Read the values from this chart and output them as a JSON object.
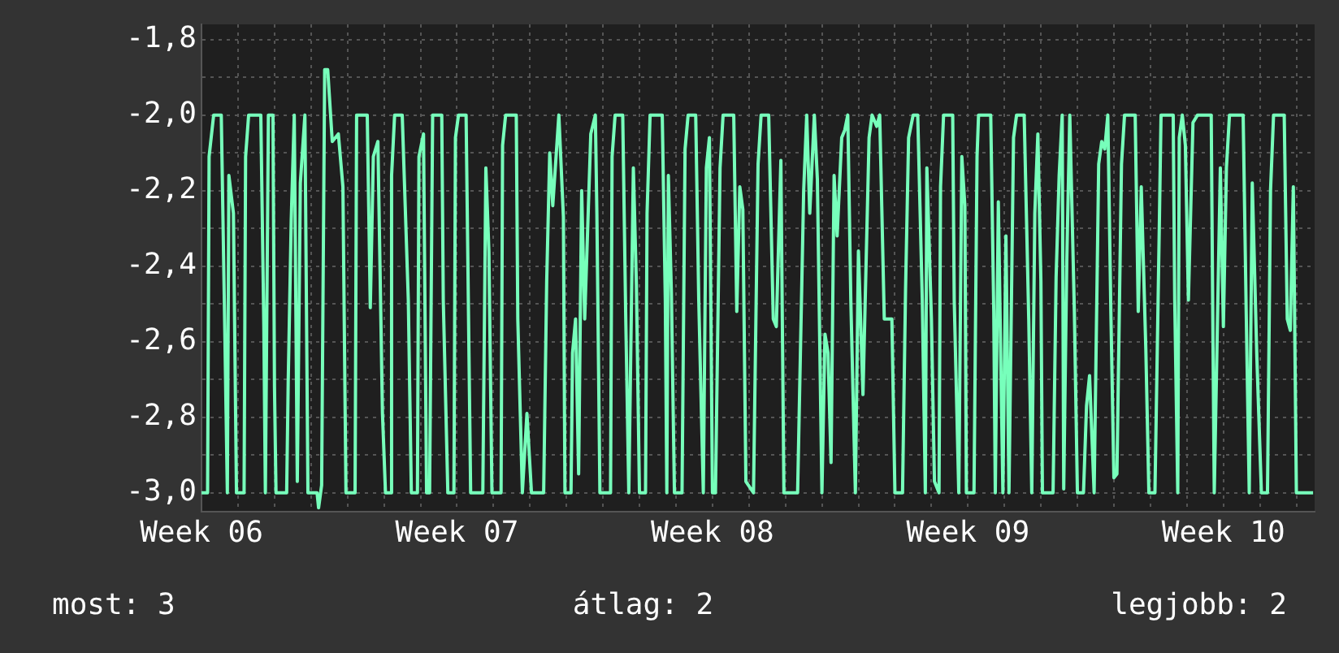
{
  "chart_data": {
    "type": "line",
    "x": [
      "--02-06T00:00",
      "--02-06T04:00",
      "--02-06T05:00",
      "--02-06T08:00",
      "--02-06T13:00",
      "--02-06T15:00",
      "--02-06T17:00",
      "--02-06T18:00",
      "--02-06T21:00",
      "--02-06T23:00",
      "--02-07T04:00",
      "--02-07T05:00",
      "--02-07T07:00",
      "--02-07T15:00",
      "--02-07T17:00",
      "--02-07T18:00",
      "--02-07T20:00",
      "--02-07T23:00",
      "--02-08T00:00",
      "--02-08T01:00",
      "--02-08T08:00",
      "--02-08T09:00",
      "--02-08T11:00",
      "--02-08T13:00",
      "--02-08T15:00",
      "--02-08T17:00",
      "--02-08T20:00",
      "--02-08T22:00",
      "--02-09T04:00",
      "--02-09T05:00",
      "--02-09T07:00",
      "--02-09T09:00",
      "--02-09T11:00",
      "--02-09T14:00",
      "--02-09T18:00",
      "--02-09T21:00",
      "--02-09T23:00",
      "--02-10T05:00",
      "--02-10T06:00",
      "--02-10T13:00",
      "--02-10T15:00",
      "--02-10T17:00",
      "--02-10T20:00",
      "--02-10T23:00",
      "--02-11T01:00",
      "--02-11T04:00",
      "--02-11T05:00",
      "--02-11T07:00",
      "--02-11T12:00",
      "--02-11T16:00",
      "--02-11T18:00",
      "--02-11T22:00",
      "--02-11T23:00",
      "--02-12T02:00",
      "--02-12T04:00",
      "--02-12T06:00",
      "--02-12T08:00",
      "--02-12T14:00",
      "--02-12T15:00",
      "--02-12T18:00",
      "--02-12T22:00",
      "--02-12T23:00",
      "--02-13T01:00",
      "--02-13T06:00",
      "--02-13T09:00",
      "--02-13T17:00",
      "--02-13T19:00",
      "--02-13T21:00",
      "--02-13T23:00",
      "--02-14T05:00",
      "--02-14T06:00",
      "--02-14T08:00",
      "--02-14T15:00",
      "--02-14T16:00",
      "--02-14T19:00",
      "--02-14T22:00",
      "--02-15T01:00",
      "--02-15T09:00",
      "--02-15T11:00",
      "--02-15T13:00",
      "--02-15T15:00",
      "--02-15T19:00",
      "--02-15T22:00",
      "--02-15T23:00",
      "--02-16T03:00",
      "--02-16T04:00",
      "--02-16T06:00",
      "--02-16T08:00",
      "--02-16T10:00",
      "--02-16T12:00",
      "--02-16T16:00",
      "--02-16T19:00",
      "--02-16T20:00",
      "--02-16T22:00",
      "--02-17T05:00",
      "--02-17T06:00",
      "--02-17T08:00",
      "--02-17T13:00",
      "--02-17T15:00",
      "--02-17T17:00",
      "--02-17T20:00",
      "--02-17T22:00",
      "--02-18T00:00",
      "--02-18T04:00",
      "--02-18T05:00",
      "--02-18T07:00",
      "--02-18T15:00",
      "--02-18T17:00",
      "--02-18T18:00",
      "--02-18T19:00",
      "--02-18T21:00",
      "--02-18T23:00",
      "--02-19T04:00",
      "--02-19T06:00",
      "--02-19T08:00",
      "--02-19T13:00",
      "--02-19T15:00",
      "--02-19T18:00",
      "--02-19T20:00",
      "--02-19T22:00",
      "--02-20T00:00",
      "--02-20T02:00",
      "--02-20T05:00",
      "--02-20T07:00",
      "--02-20T14:00",
      "--02-20T16:00",
      "--02-20T18:00",
      "--02-20T20:00",
      "--02-20T22:00",
      "--02-21T03:00",
      "--02-21T06:00",
      "--02-21T08:00",
      "--02-21T13:00",
      "--02-21T16:00",
      "--02-21T18:00",
      "--02-21T21:00",
      "--02-21T23:00",
      "--02-22T08:00",
      "--02-22T10:00",
      "--02-22T12:00",
      "--02-22T14:00",
      "--02-22T16:00",
      "--02-22T19:00",
      "--02-22T21:00",
      "--02-23T00:00",
      "--02-23T02:00",
      "--02-23T04:00",
      "--02-23T06:00",
      "--02-23T08:00",
      "--02-23T10:00",
      "--02-23T13:00",
      "--02-23T15:00",
      "--02-23T17:00",
      "--02-23T19:00",
      "--02-23T22:00",
      "--02-24T00:00",
      "--02-24T03:00",
      "--02-24T07:00",
      "--02-24T09:00",
      "--02-24T12:00",
      "--02-24T14:00",
      "--02-24T17:00",
      "--02-24T22:00",
      "--02-25T00:00",
      "--02-25T05:00",
      "--02-25T07:00",
      "--02-25T09:00",
      "--02-25T12:00",
      "--02-25T15:00",
      "--02-25T18:00",
      "--02-25T20:00",
      "--02-25T21:00",
      "--02-26T00:00",
      "--02-26T02:00",
      "--02-26T05:00",
      "--02-26T06:00",
      "--02-26T08:00",
      "--02-26T14:00",
      "--02-26T15:00",
      "--02-26T18:00",
      "--02-26T20:00",
      "--02-26T22:00",
      "--02-26T23:00",
      "--02-27T04:00",
      "--02-27T06:00",
      "--02-27T07:00",
      "--02-27T15:00",
      "--02-27T17:00",
      "--02-27T18:00",
      "--02-27T20:00",
      "--02-27T23:00",
      "--02-28T01:00",
      "--02-28T03:00",
      "--02-28T06:00",
      "--02-28T08:00",
      "--02-28T13:00",
      "--02-28T16:00",
      "--02-28T18:00",
      "--02-28T20:00",
      "--02-28T22:00",
      "--03-01T00:00",
      "--03-01T01:00",
      "--03-01T08:00",
      "--03-01T10:00",
      "--03-01T12:00",
      "--03-01T14:00",
      "--03-01T15:00",
      "--03-01T17:00",
      "--03-01T19:00",
      "--03-01T22:00",
      "--03-02T00:00",
      "--03-02T04:00",
      "--03-02T06:00",
      "--03-02T08:00",
      "--03-02T11:00",
      "--03-02T14:00",
      "--03-02T16:00",
      "--03-02T18:00",
      "--03-02T20:00",
      "--03-02T22:00",
      "--03-03T00:00",
      "--03-03T02:00",
      "--03-03T05:00",
      "--03-03T07:00",
      "--03-03T14:00",
      "--03-03T16:00",
      "--03-03T18:00",
      "--03-03T21:00",
      "--03-03T23:00",
      "--03-04T03:00",
      "--03-04T06:00",
      "--03-04T07:00",
      "--03-04T15:00",
      "--03-04T16:00",
      "--03-04T18:00",
      "--03-04T19:00",
      "--03-04T21:00",
      "--03-04T23:00",
      "--03-05T01:00",
      "--03-05T04:00",
      "--03-05T07:00",
      "--03-05T16:00",
      "--03-05T17:00",
      "--03-05T18:00",
      "--03-05T22:00",
      "--03-06T00:00",
      "--03-06T02:00",
      "--03-06T04:00",
      "--03-06T13:00",
      "--03-06T15:00",
      "--03-06T17:00",
      "--03-06T19:00",
      "--03-06T22:00",
      "--03-07T01:00",
      "--03-07T05:00",
      "--03-07T07:00",
      "--03-07T09:00",
      "--03-07T16:00",
      "--03-07T18:00",
      "--03-07T20:00",
      "--03-07T22:00",
      "--03-08T00:00",
      "--03-08T11:00"
    ],
    "series": [
      {
        "color": "#77ffbb",
        "values": [
          -3.0,
          -3.0,
          -2.11,
          -2.0,
          -2.0,
          -2.49,
          -3.0,
          -2.16,
          -2.26,
          -3.0,
          -3.0,
          -2.11,
          -2.0,
          -2.0,
          -2.56,
          -3.0,
          -2.0,
          -2.0,
          -2.72,
          -3.0,
          -3.0,
          -2.71,
          -2.28,
          -2.0,
          -2.97,
          -2.18,
          -2.0,
          -3.0,
          -3.0,
          -3.04,
          -2.98,
          -1.88,
          -1.88,
          -2.07,
          -2.05,
          -2.19,
          -3.0,
          -3.0,
          -2.0,
          -2.0,
          -2.51,
          -2.11,
          -2.07,
          -2.79,
          -3.0,
          -3.0,
          -2.16,
          -2.0,
          -2.0,
          -2.49,
          -3.0,
          -3.0,
          -2.11,
          -2.05,
          -3.0,
          -3.0,
          -2.0,
          -2.0,
          -2.49,
          -3.0,
          -3.0,
          -2.06,
          -2.0,
          -2.0,
          -3.0,
          -3.0,
          -2.14,
          -2.36,
          -3.0,
          -3.0,
          -2.08,
          -2.0,
          -2.0,
          -2.54,
          -3.0,
          -2.79,
          -3.0,
          -3.0,
          -2.44,
          -2.1,
          -2.24,
          -2.0,
          -2.27,
          -3.0,
          -3.0,
          -2.63,
          -2.54,
          -2.95,
          -2.2,
          -2.54,
          -2.05,
          -2.0,
          -2.26,
          -3.0,
          -3.0,
          -2.11,
          -2.0,
          -2.0,
          -2.54,
          -3.0,
          -2.14,
          -2.45,
          -3.0,
          -3.0,
          -2.26,
          -2.0,
          -2.0,
          -2.49,
          -3.0,
          -2.16,
          -2.47,
          -3.0,
          -3.0,
          -2.09,
          -2.0,
          -2.0,
          -2.49,
          -3.0,
          -2.14,
          -2.06,
          -3.0,
          -3.0,
          -2.14,
          -2.0,
          -2.0,
          -2.52,
          -2.19,
          -2.25,
          -2.97,
          -3.0,
          -2.13,
          -2.0,
          -2.0,
          -2.54,
          -2.56,
          -2.12,
          -3.0,
          -3.0,
          -2.6,
          -2.2,
          -2.0,
          -2.26,
          -2.0,
          -2.17,
          -3.0,
          -2.58,
          -2.63,
          -2.92,
          -2.16,
          -2.32,
          -2.06,
          -2.04,
          -2.0,
          -2.49,
          -3.0,
          -2.36,
          -2.74,
          -2.06,
          -2.0,
          -2.03,
          -2.0,
          -2.54,
          -2.54,
          -3.0,
          -3.0,
          -2.46,
          -2.06,
          -2.0,
          -2.0,
          -2.49,
          -3.0,
          -2.14,
          -2.54,
          -2.97,
          -3.0,
          -2.19,
          -2.0,
          -2.0,
          -2.49,
          -3.0,
          -2.11,
          -2.24,
          -3.0,
          -3.0,
          -2.11,
          -2.0,
          -2.0,
          -2.52,
          -3.0,
          -2.23,
          -3.0,
          -2.32,
          -3.0,
          -2.06,
          -2.0,
          -2.0,
          -2.54,
          -3.0,
          -2.26,
          -2.05,
          -2.44,
          -3.0,
          -3.0,
          -2.43,
          -2.16,
          -2.0,
          -2.99,
          -2.39,
          -2.0,
          -2.52,
          -3.0,
          -3.0,
          -2.77,
          -2.69,
          -3.0,
          -2.13,
          -2.07,
          -2.09,
          -2.0,
          -2.52,
          -2.96,
          -2.95,
          -2.13,
          -2.0,
          -2.0,
          -2.52,
          -2.19,
          -2.62,
          -3.0,
          -3.0,
          -2.26,
          -2.0,
          -2.0,
          -2.49,
          -3.0,
          -2.06,
          -2.0,
          -2.08,
          -2.49,
          -2.02,
          -2.0,
          -2.0,
          -2.52,
          -3.0,
          -2.14,
          -2.56,
          -2.14,
          -2.0,
          -2.0,
          -2.52,
          -3.0,
          -2.18,
          -2.64,
          -3.0,
          -3.0,
          -2.2,
          -2.0,
          -2.0,
          -2.54,
          -2.57,
          -2.19,
          -3.0,
          -3.0
        ]
      }
    ],
    "xlim": [
      "--02-06T00:00",
      "--03-08T12:00"
    ],
    "xticks": [
      {
        "value": "--02-06T00:00",
        "label": "Week 06"
      },
      {
        "value": "--02-07T00:00",
        "label": null
      },
      {
        "value": "--02-08T00:00",
        "label": null
      },
      {
        "value": "--02-09T00:00",
        "label": null
      },
      {
        "value": "--02-10T00:00",
        "label": null
      },
      {
        "value": "--02-11T00:00",
        "label": null
      },
      {
        "value": "--02-12T00:00",
        "label": null
      },
      {
        "value": "--02-13T00:00",
        "label": "Week 07"
      },
      {
        "value": "--02-14T00:00",
        "label": null
      },
      {
        "value": "--02-15T00:00",
        "label": null
      },
      {
        "value": "--02-16T00:00",
        "label": null
      },
      {
        "value": "--02-17T00:00",
        "label": null
      },
      {
        "value": "--02-18T00:00",
        "label": null
      },
      {
        "value": "--02-19T00:00",
        "label": null
      },
      {
        "value": "--02-20T00:00",
        "label": "Week 08"
      },
      {
        "value": "--02-21T00:00",
        "label": null
      },
      {
        "value": "--02-22T00:00",
        "label": null
      },
      {
        "value": "--02-23T00:00",
        "label": null
      },
      {
        "value": "--02-24T00:00",
        "label": null
      },
      {
        "value": "--02-25T00:00",
        "label": null
      },
      {
        "value": "--02-26T00:00",
        "label": null
      },
      {
        "value": "--02-27T00:00",
        "label": "Week 09"
      },
      {
        "value": "--02-28T00:00",
        "label": null
      },
      {
        "value": "--03-01T00:00",
        "label": null
      },
      {
        "value": "--03-02T00:00",
        "label": null
      },
      {
        "value": "--03-03T00:00",
        "label": null
      },
      {
        "value": "--03-04T00:00",
        "label": null
      },
      {
        "value": "--03-05T00:00",
        "label": null
      },
      {
        "value": "--03-06T00:00",
        "label": "Week 10"
      },
      {
        "value": "--03-07T00:00",
        "label": null
      },
      {
        "value": "--03-08T00:00",
        "label": null
      }
    ],
    "ylim": [
      -3.05,
      -1.76
    ],
    "yticks": [
      {
        "value": -3.0,
        "label": "-3,0"
      },
      {
        "value": -2.9,
        "label": null
      },
      {
        "value": -2.8,
        "label": "-2,8"
      },
      {
        "value": -2.7,
        "label": null
      },
      {
        "value": -2.6,
        "label": "-2,6"
      },
      {
        "value": -2.5,
        "label": null
      },
      {
        "value": -2.4,
        "label": "-2,4"
      },
      {
        "value": -2.3,
        "label": null
      },
      {
        "value": -2.2,
        "label": "-2,2"
      },
      {
        "value": -2.1,
        "label": null
      },
      {
        "value": -2.0,
        "label": "-2,0"
      },
      {
        "value": -1.9,
        "label": null
      },
      {
        "value": -1.8,
        "label": "-1,8"
      }
    ],
    "grid": true,
    "legend": false,
    "annotations": [
      "most: 3",
      "átlag: 2",
      "legjobb: 2"
    ]
  }
}
